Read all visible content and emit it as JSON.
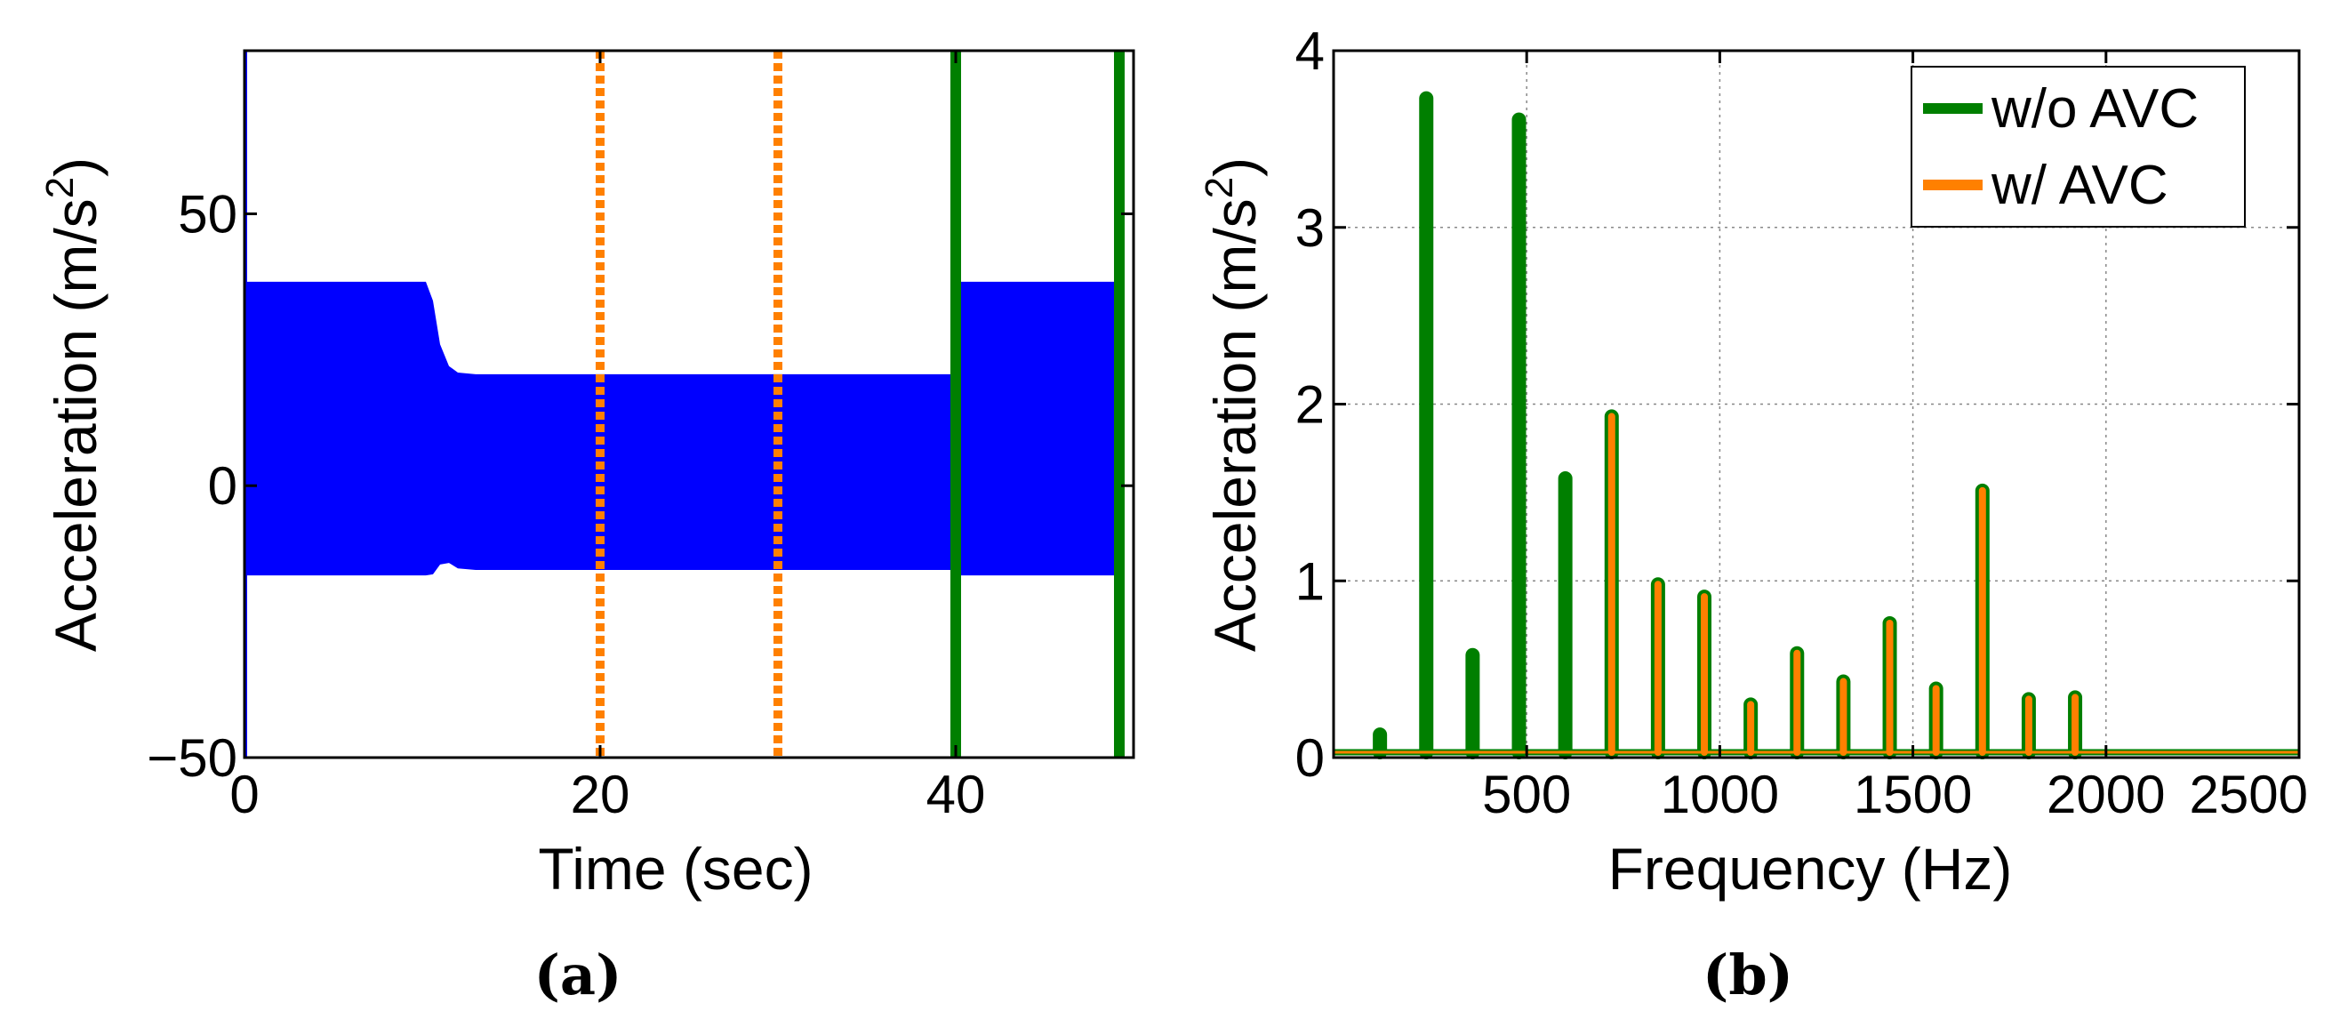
{
  "chart_data": [
    {
      "type": "line",
      "panel_label": "(a)",
      "xlabel": "Time (sec)",
      "ylabel_parts": {
        "prefix": "Acceleration (m/s",
        "exponent": "2",
        "suffix": ")"
      },
      "xlim": [
        0,
        50
      ],
      "ylim": [
        -50,
        80
      ],
      "x_ticks": [
        "0",
        "20",
        "40"
      ],
      "x_tick_values": [
        0,
        20,
        40
      ],
      "y_ticks": [
        "−50",
        "0",
        "50"
      ],
      "y_tick_values": [
        -50,
        0,
        50
      ],
      "grid": false,
      "colors": {
        "signal": "#0000ff",
        "orange": "#ff8000",
        "green": "#007f00"
      },
      "signal_envelope": {
        "x": [
          0,
          10.2,
          10.6,
          11.0,
          11.5,
          12.0,
          13.0,
          20,
          30,
          39.9,
          39.9,
          49.2
        ],
        "upper": [
          37.5,
          37.5,
          34,
          26,
          22,
          20.8,
          20.5,
          20.5,
          20.5,
          20.5,
          37.5,
          37.5
        ],
        "lower": [
          -16.5,
          -16.5,
          -16.3,
          -14.5,
          -14.2,
          -15.2,
          -15.5,
          -15.5,
          -15.5,
          -15.5,
          -16.5,
          -16.5
        ]
      },
      "initial_spike": {
        "x": 0.05,
        "from": -50,
        "to": 80
      },
      "vertical_markers": [
        {
          "x": 20,
          "style": "dotted",
          "color": "orange"
        },
        {
          "x": 30,
          "style": "dotted",
          "color": "orange"
        },
        {
          "x": 40,
          "style": "solid",
          "color": "green"
        },
        {
          "x": 49.2,
          "style": "solid",
          "color": "green"
        }
      ]
    },
    {
      "type": "line",
      "panel_label": "(b)",
      "xlabel": "Frequency (Hz)",
      "ylabel_parts": {
        "prefix": "Acceleration (m/s",
        "exponent": "2",
        "suffix": ")"
      },
      "xlim": [
        0,
        2500
      ],
      "ylim": [
        0,
        4
      ],
      "x_ticks": [
        "500",
        "1000",
        "1500",
        "2000",
        "2500"
      ],
      "x_tick_values": [
        500,
        1000,
        1500,
        2000,
        2500
      ],
      "y_ticks": [
        "0",
        "1",
        "2",
        "3",
        "4"
      ],
      "y_tick_values": [
        0,
        1,
        2,
        3,
        4
      ],
      "grid": true,
      "legend_position": "top-right",
      "series": [
        {
          "name": "w/o AVC",
          "color": "#007f00",
          "peaks": [
            {
              "x": 120,
              "y": 0.13
            },
            {
              "x": 240,
              "y": 3.73
            },
            {
              "x": 360,
              "y": 0.58
            },
            {
              "x": 480,
              "y": 3.61
            },
            {
              "x": 600,
              "y": 1.58
            },
            {
              "x": 720,
              "y": 1.93
            },
            {
              "x": 840,
              "y": 0.98
            },
            {
              "x": 960,
              "y": 0.91
            },
            {
              "x": 1080,
              "y": 0.3
            },
            {
              "x": 1200,
              "y": 0.59
            },
            {
              "x": 1320,
              "y": 0.43
            },
            {
              "x": 1440,
              "y": 0.76
            },
            {
              "x": 1560,
              "y": 0.39
            },
            {
              "x": 1680,
              "y": 1.51
            },
            {
              "x": 1800,
              "y": 0.33
            },
            {
              "x": 1920,
              "y": 0.34
            }
          ]
        },
        {
          "name": "w/ AVC",
          "color": "#ff8000",
          "peaks": [
            {
              "x": 720,
              "y": 1.93
            },
            {
              "x": 840,
              "y": 0.98
            },
            {
              "x": 960,
              "y": 0.91
            },
            {
              "x": 1080,
              "y": 0.3
            },
            {
              "x": 1200,
              "y": 0.59
            },
            {
              "x": 1320,
              "y": 0.43
            },
            {
              "x": 1440,
              "y": 0.76
            },
            {
              "x": 1560,
              "y": 0.39
            },
            {
              "x": 1680,
              "y": 1.51
            },
            {
              "x": 1800,
              "y": 0.33
            },
            {
              "x": 1920,
              "y": 0.34
            }
          ]
        }
      ]
    }
  ]
}
